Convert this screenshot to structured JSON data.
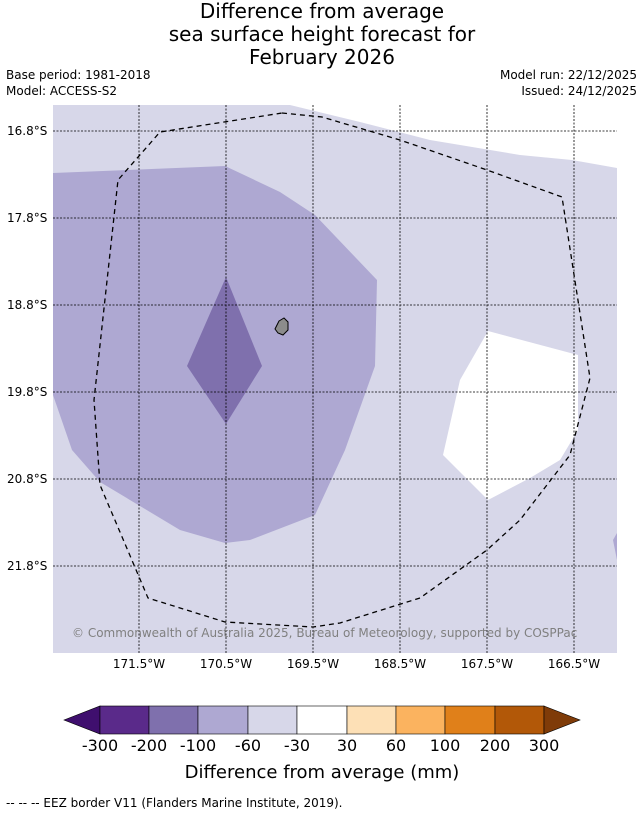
{
  "title": {
    "line1": "Difference from average",
    "line2": "sea surface height forecast for",
    "line3": "February 2026"
  },
  "meta": {
    "base_period": "Base period: 1981-2018",
    "model": "Model: ACCESS-S2",
    "model_run": "Model run: 22/12/2025",
    "issued": "Issued: 24/12/2025"
  },
  "map": {
    "latitudes": [
      "16.8°S",
      "17.8°S",
      "18.8°S",
      "19.8°S",
      "20.8°S",
      "21.8°S"
    ],
    "longitudes": [
      "171.5°W",
      "170.5°W",
      "169.5°W",
      "168.5°W",
      "167.5°W",
      "166.5°W"
    ],
    "copyright": "© Commonwealth of Australia 2025, Bureau of Meteorology, supported by COSPPac"
  },
  "colorbar": {
    "ticks": [
      "-300",
      "-200",
      "-100",
      "-60",
      "-30",
      "30",
      "60",
      "100",
      "200",
      "300"
    ],
    "colors": [
      "#3f0f6e",
      "#5a2a8a",
      "#7f70ad",
      "#aea8d2",
      "#d7d7e9",
      "#ffffff",
      "#fde0b6",
      "#fbb35f",
      "#e0801a",
      "#b25808",
      "#7f3b08"
    ],
    "label": "Difference from average (mm)"
  },
  "legend": {
    "eez_text": "-- -- -- EEZ border V11 (Flanders Marine Institute, 2019)."
  }
}
